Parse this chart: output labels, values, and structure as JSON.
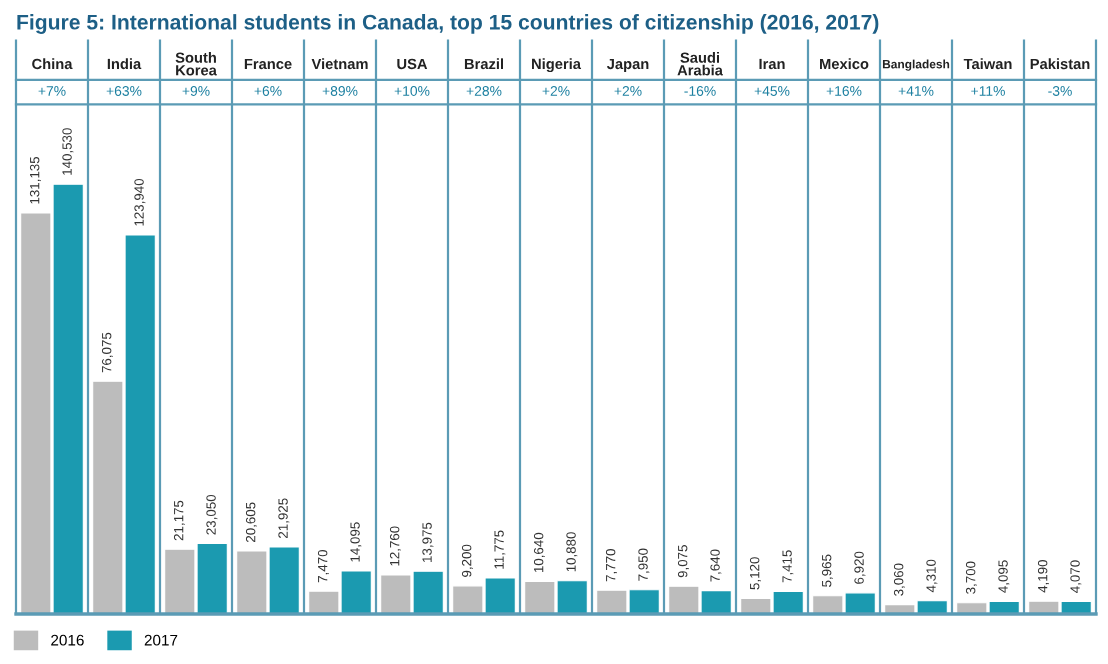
{
  "chart_data": {
    "type": "bar",
    "title": "Figure 5: International students in Canada, top 15 countries of citizenship (2016, 2017)",
    "categories": [
      "China",
      "India",
      "South Korea",
      "France",
      "Vietnam",
      "USA",
      "Brazil",
      "Nigeria",
      "Japan",
      "Saudi Arabia",
      "Iran",
      "Mexico",
      "Bangladesh",
      "Taiwan",
      "Pakistan"
    ],
    "series": [
      {
        "name": "2016",
        "color": "#bcbcbc",
        "values": [
          131135,
          76075,
          21175,
          20605,
          7470,
          12760,
          9200,
          10640,
          7770,
          9075,
          5120,
          5965,
          3060,
          3700,
          4190
        ],
        "value_labels": [
          "131,135",
          "76,075",
          "21,175",
          "20,605",
          "7,470",
          "12,760",
          "9,200",
          "10,640",
          "7,770",
          "9,075",
          "5,120",
          "5,965",
          "3,060",
          "3,700",
          "4,190"
        ]
      },
      {
        "name": "2017",
        "color": "#1b9ab0",
        "values": [
          140530,
          123940,
          23050,
          21925,
          14095,
          13975,
          11775,
          10880,
          7950,
          7640,
          7415,
          6920,
          4310,
          4095,
          4070
        ],
        "value_labels": [
          "140,530",
          "123,940",
          "23,050",
          "21,925",
          "14,095",
          "13,975",
          "11,775",
          "10,880",
          "7,950",
          "7,640",
          "7,415",
          "6,920",
          "4,310",
          "4,095",
          "4,070"
        ]
      }
    ],
    "annotations": [
      "+7%",
      "+63%",
      "+9%",
      "+6%",
      "+89%",
      "+10%",
      "+28%",
      "+2%",
      "+2%",
      "-16%",
      "+45%",
      "+16%",
      "+41%",
      "+11%",
      "-3%"
    ],
    "legend": "bottom left"
  }
}
